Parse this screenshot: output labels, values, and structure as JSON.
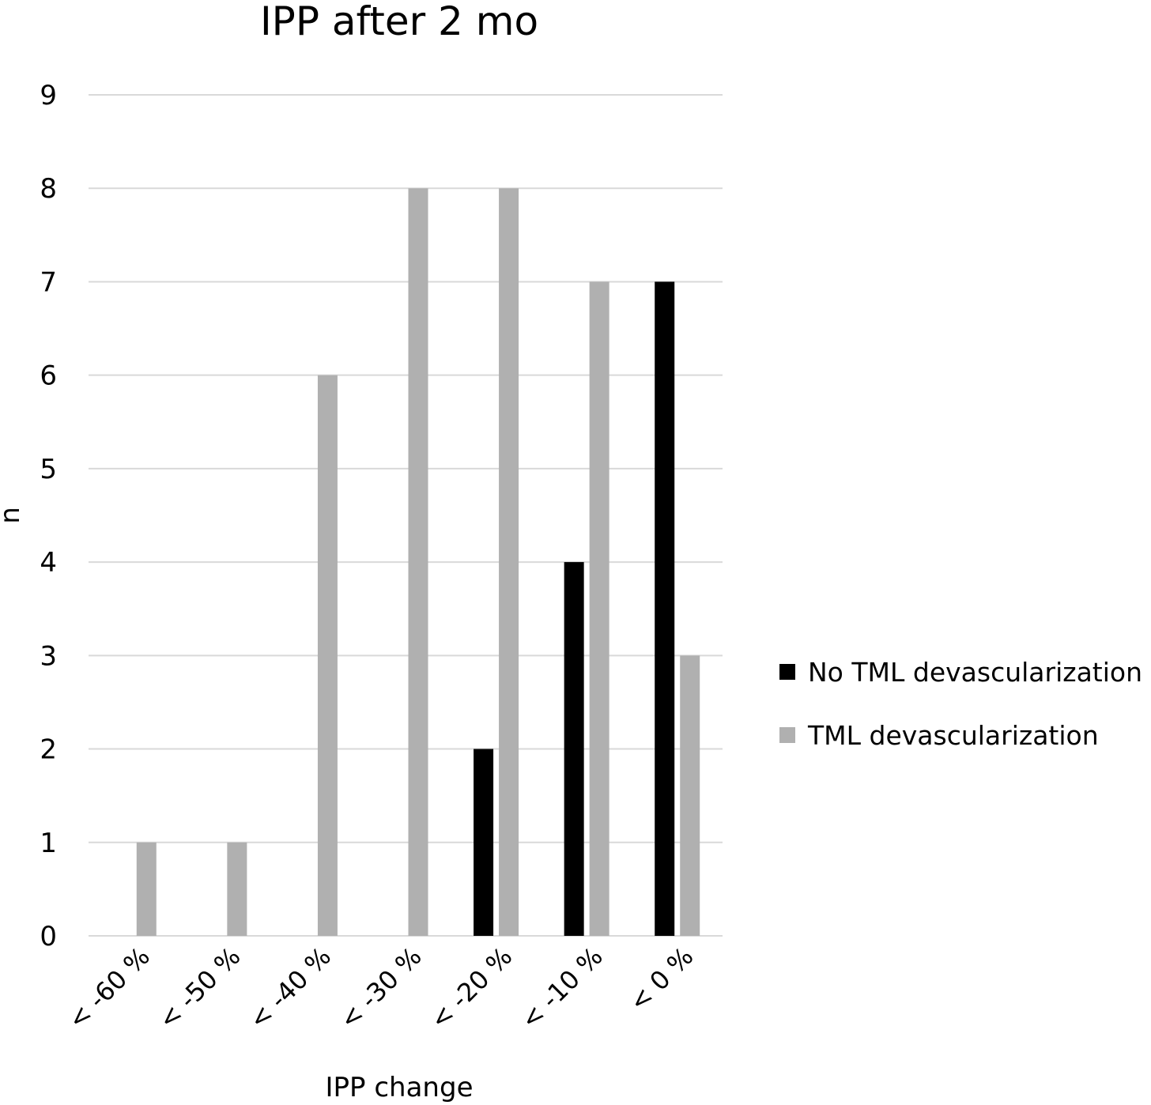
{
  "chart_data": {
    "type": "bar",
    "title": "IPP after 2 mo",
    "xlabel": "IPP change",
    "ylabel": "n",
    "categories": [
      "< -60 %",
      "< -50 %",
      "< -40 %",
      "< -30 %",
      "< -20 %",
      "< -10 %",
      "< 0 %"
    ],
    "ylim": [
      0,
      9
    ],
    "yticks": [
      "0",
      "1",
      "2",
      "3",
      "4",
      "5",
      "6",
      "7",
      "8",
      "9"
    ],
    "grid": true,
    "legend_position": "right",
    "series": [
      {
        "name": "No TML devascularization",
        "color": "#000000",
        "values": [
          0,
          0,
          0,
          0,
          2,
          4,
          7
        ]
      },
      {
        "name": "TML devascularization",
        "color": "#b0b0b0",
        "values": [
          1,
          1,
          6,
          8,
          8,
          7,
          3
        ]
      }
    ]
  }
}
